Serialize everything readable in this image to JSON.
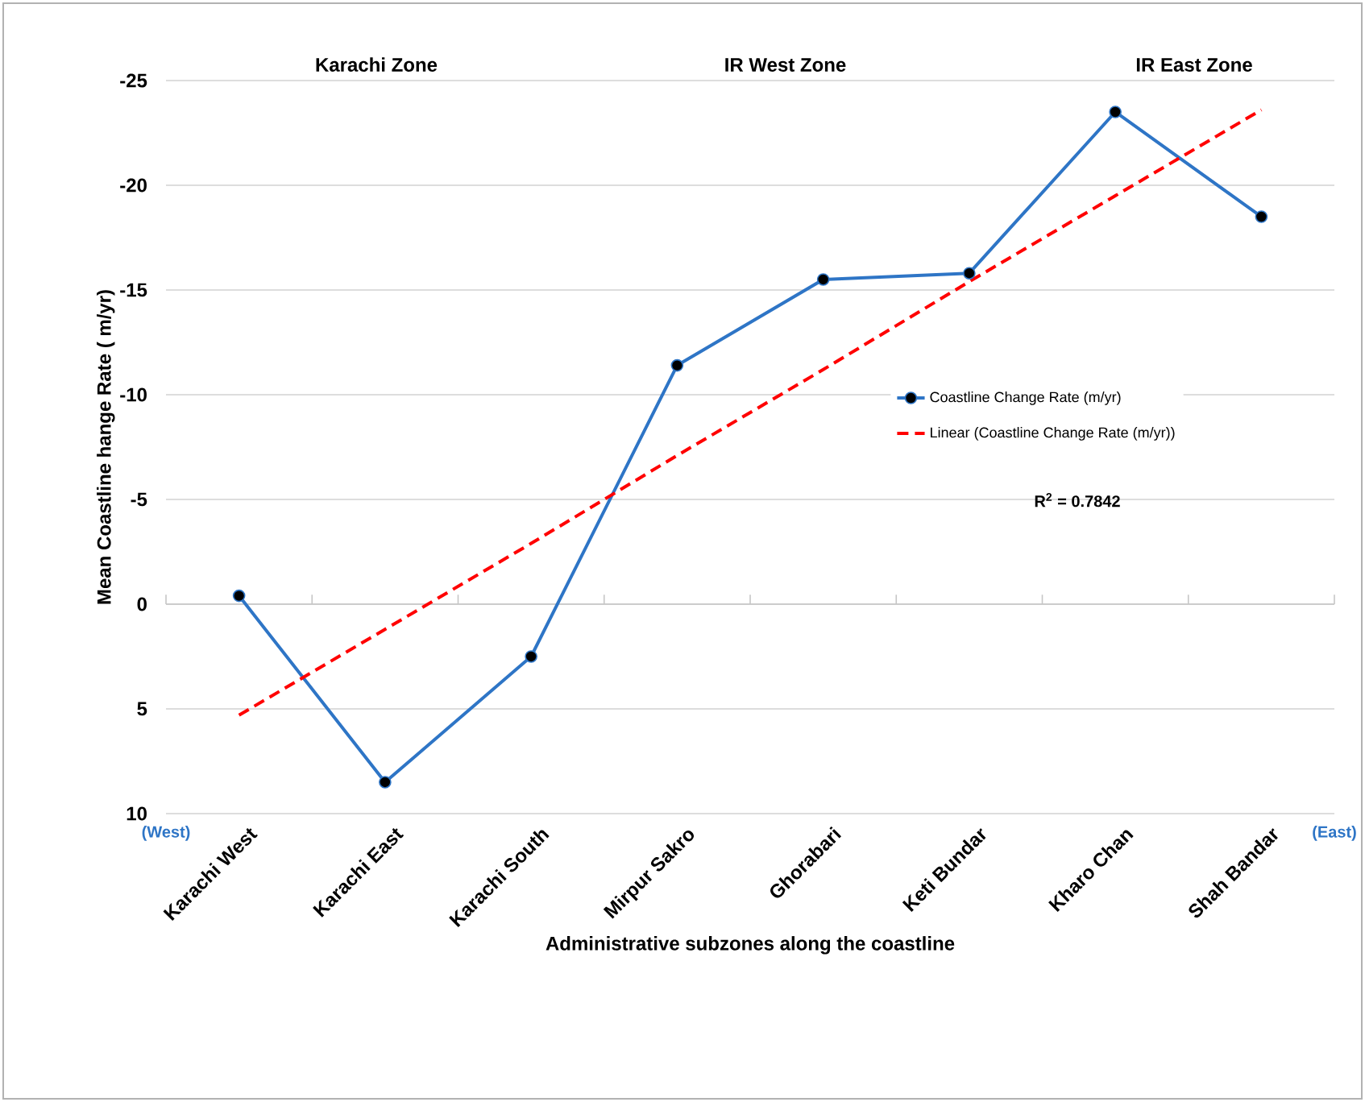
{
  "chart_data": {
    "type": "line",
    "xlabel": "Administrative subzones along the coastline",
    "ylabel": "Mean Coastline hange Rate ( m/yr)",
    "categories": [
      "Karachi West",
      "Karachi East",
      "Karachi South",
      "Mirpur Sakro",
      "Ghorabari",
      "Keti Bundar",
      "Kharo Chan",
      "Shah Bandar"
    ],
    "series": [
      {
        "name": "Coastline Change Rate (m/yr)",
        "color": "#2e75c6",
        "marker": "circle",
        "line_style": "solid",
        "values": [
          -0.4,
          8.5,
          2.5,
          -11.4,
          -15.5,
          -15.8,
          -23.5,
          -18.5
        ]
      },
      {
        "name": "Linear (Coastline Change Rate (m/yr))",
        "color": "#ff0000",
        "marker": "none",
        "line_style": "dashed",
        "values": [
          5.3,
          1.2,
          -2.9,
          -7.1,
          -11.2,
          -15.4,
          -19.5,
          -23.6
        ]
      }
    ],
    "ylim": [
      10,
      -25
    ],
    "yticks": [
      -25,
      -20,
      -15,
      -10,
      -5,
      0,
      5,
      10
    ],
    "grid": "y",
    "legend": "right",
    "annotations": [
      "Karachi Zone",
      "IR West Zone",
      "IR East Zone",
      "(West)",
      "(East)",
      "R$^{2}$ = 0.7842"
    ]
  }
}
